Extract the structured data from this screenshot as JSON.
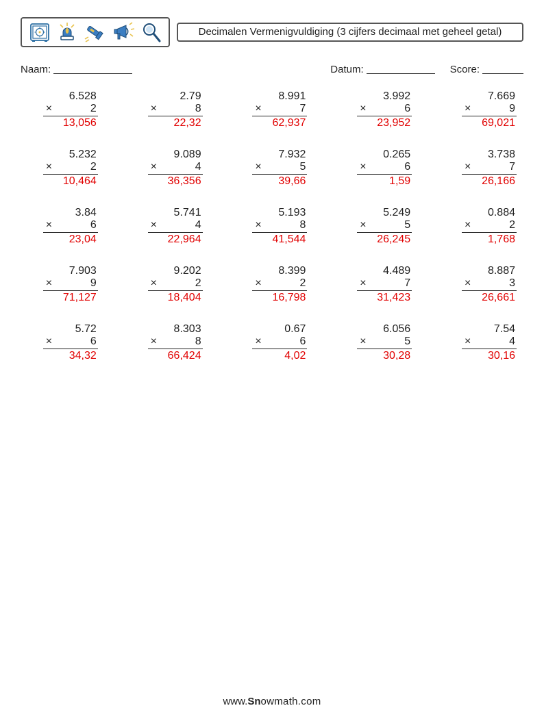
{
  "title": "Decimalen Vermenigvuldiging (3 cijfers decimaal met geheel getal)",
  "labels": {
    "name": "Naam:",
    "date": "Datum:",
    "score": "Score:"
  },
  "line_widths": {
    "name": 115,
    "date": 100,
    "score": 60
  },
  "colors": {
    "answer": "#e10000",
    "text": "#222",
    "border": "#555"
  },
  "icons": [
    "safe-icon",
    "alarm-icon",
    "flashlight-icon",
    "megaphone-icon",
    "magnifier-icon"
  ],
  "footer": {
    "pre": "www.",
    "bold": "Sn",
    "rest": "owmath.com"
  },
  "grid": {
    "rows": 5,
    "cols": 5,
    "col_gap": 50,
    "row_gap": 28,
    "problem_width": 80,
    "font_size": 16
  },
  "problems": [
    {
      "a": "6.528",
      "b": "2",
      "ans": "13,056"
    },
    {
      "a": "2.79",
      "b": "8",
      "ans": "22,32"
    },
    {
      "a": "8.991",
      "b": "7",
      "ans": "62,937"
    },
    {
      "a": "3.992",
      "b": "6",
      "ans": "23,952"
    },
    {
      "a": "7.669",
      "b": "9",
      "ans": "69,021"
    },
    {
      "a": "5.232",
      "b": "2",
      "ans": "10,464"
    },
    {
      "a": "9.089",
      "b": "4",
      "ans": "36,356"
    },
    {
      "a": "7.932",
      "b": "5",
      "ans": "39,66"
    },
    {
      "a": "0.265",
      "b": "6",
      "ans": "1,59"
    },
    {
      "a": "3.738",
      "b": "7",
      "ans": "26,166"
    },
    {
      "a": "3.84",
      "b": "6",
      "ans": "23,04"
    },
    {
      "a": "5.741",
      "b": "4",
      "ans": "22,964"
    },
    {
      "a": "5.193",
      "b": "8",
      "ans": "41,544"
    },
    {
      "a": "5.249",
      "b": "5",
      "ans": "26,245"
    },
    {
      "a": "0.884",
      "b": "2",
      "ans": "1,768"
    },
    {
      "a": "7.903",
      "b": "9",
      "ans": "71,127"
    },
    {
      "a": "9.202",
      "b": "2",
      "ans": "18,404"
    },
    {
      "a": "8.399",
      "b": "2",
      "ans": "16,798"
    },
    {
      "a": "4.489",
      "b": "7",
      "ans": "31,423"
    },
    {
      "a": "8.887",
      "b": "3",
      "ans": "26,661"
    },
    {
      "a": "5.72",
      "b": "6",
      "ans": "34,32"
    },
    {
      "a": "8.303",
      "b": "8",
      "ans": "66,424"
    },
    {
      "a": "0.67",
      "b": "6",
      "ans": "4,02"
    },
    {
      "a": "6.056",
      "b": "5",
      "ans": "30,28"
    },
    {
      "a": "7.54",
      "b": "4",
      "ans": "30,16"
    }
  ]
}
